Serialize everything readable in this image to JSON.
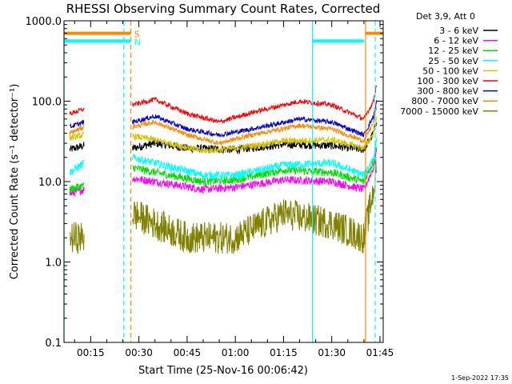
{
  "chart_data": {
    "type": "line",
    "title": "RHESSI Observing Summary Count Rates, Corrected",
    "xlabel": "Start Time (25-Nov-16 00:06:42)",
    "ylabel": "Corrected Count Rate (s⁻¹ detector⁻¹)",
    "y_scale": "log",
    "ylim": [
      0.1,
      1000.0
    ],
    "xlim_min": [
      6.7,
      106
    ],
    "x_ticks": [
      {
        "min": 15,
        "label": "00:15"
      },
      {
        "min": 30,
        "label": "00:30"
      },
      {
        "min": 45,
        "label": "00:45"
      },
      {
        "min": 60,
        "label": "01:00"
      },
      {
        "min": 75,
        "label": "01:15"
      },
      {
        "min": 90,
        "label": "01:30"
      },
      {
        "min": 105,
        "label": "01:45"
      }
    ],
    "y_ticks": [
      {
        "v": 0.1,
        "label": "0.1"
      },
      {
        "v": 1,
        "label": "1.0"
      },
      {
        "v": 10,
        "label": "10.0"
      },
      {
        "v": 100,
        "label": "100.0"
      },
      {
        "v": 1000,
        "label": "1000.0"
      }
    ],
    "legend": {
      "position": "right",
      "header": "Det 3,9, Att 0",
      "entries": [
        {
          "label": "3 - 6 keV",
          "color": "#000000"
        },
        {
          "label": "6 - 12 keV",
          "color": "#ff00ff"
        },
        {
          "label": "12 - 25 keV",
          "color": "#00dd00"
        },
        {
          "label": "25 - 50 keV",
          "color": "#00ffff"
        },
        {
          "label": "50 - 100 keV",
          "color": "#d4c400"
        },
        {
          "label": "100 - 300 keV",
          "color": "#ff0000"
        },
        {
          "label": "300 - 800 keV",
          "color": "#0000cc"
        },
        {
          "label": "800 - 7000 keV",
          "color": "#ff8800"
        },
        {
          "label": "7000 - 15000 keV",
          "color": "#808000"
        }
      ]
    },
    "segments": [
      [
        8.5,
        13.0
      ],
      [
        28.0,
        104.0
      ]
    ],
    "series": [
      {
        "name": "3 - 6 keV",
        "color": "#000000",
        "noise": 0.05,
        "points": [
          [
            8.5,
            25
          ],
          [
            13,
            28
          ],
          [
            28,
            26
          ],
          [
            35,
            30
          ],
          [
            45,
            26
          ],
          [
            60,
            25
          ],
          [
            75,
            29
          ],
          [
            90,
            28
          ],
          [
            100,
            25
          ],
          [
            103,
            40
          ],
          [
            104,
            60
          ]
        ]
      },
      {
        "name": "6 - 12 keV",
        "color": "#ff00ff",
        "noise": 0.05,
        "points": [
          [
            8.5,
            7
          ],
          [
            13,
            8
          ],
          [
            28,
            11
          ],
          [
            35,
            10
          ],
          [
            50,
            8
          ],
          [
            60,
            8.5
          ],
          [
            75,
            10.5
          ],
          [
            90,
            10
          ],
          [
            100,
            8
          ],
          [
            103,
            15
          ],
          [
            104,
            25
          ]
        ]
      },
      {
        "name": "12 - 25 keV",
        "color": "#00dd00",
        "noise": 0.05,
        "points": [
          [
            8.5,
            8
          ],
          [
            13,
            9
          ],
          [
            28,
            15
          ],
          [
            35,
            13
          ],
          [
            50,
            10
          ],
          [
            60,
            10.5
          ],
          [
            75,
            14
          ],
          [
            90,
            13
          ],
          [
            100,
            10
          ],
          [
            103,
            18
          ],
          [
            104,
            30
          ]
        ]
      },
      {
        "name": "25 - 50 keV",
        "color": "#00ffff",
        "noise": 0.05,
        "points": [
          [
            8.5,
            13
          ],
          [
            13,
            17
          ],
          [
            28,
            20
          ],
          [
            35,
            17
          ],
          [
            50,
            12
          ],
          [
            60,
            12
          ],
          [
            75,
            16
          ],
          [
            90,
            17
          ],
          [
            100,
            12
          ],
          [
            103,
            20
          ],
          [
            104,
            35
          ]
        ]
      },
      {
        "name": "50 - 100 keV",
        "color": "#d4c400",
        "noise": 0.04,
        "points": [
          [
            8.5,
            35
          ],
          [
            13,
            38
          ],
          [
            28,
            37
          ],
          [
            35,
            33
          ],
          [
            50,
            24
          ],
          [
            60,
            26
          ],
          [
            75,
            32
          ],
          [
            90,
            33
          ],
          [
            100,
            26
          ],
          [
            103,
            40
          ],
          [
            104,
            60
          ]
        ]
      },
      {
        "name": "100 - 300 keV",
        "color": "#ff0000",
        "noise": 0.03,
        "points": [
          [
            8.5,
            70
          ],
          [
            13,
            80
          ],
          [
            28,
            90
          ],
          [
            35,
            105
          ],
          [
            45,
            70
          ],
          [
            55,
            55
          ],
          [
            65,
            72
          ],
          [
            80,
            100
          ],
          [
            90,
            90
          ],
          [
            100,
            60
          ],
          [
            103,
            100
          ],
          [
            104,
            170
          ]
        ]
      },
      {
        "name": "300 - 800 keV",
        "color": "#0000cc",
        "noise": 0.03,
        "points": [
          [
            8.5,
            48
          ],
          [
            13,
            55
          ],
          [
            28,
            55
          ],
          [
            35,
            65
          ],
          [
            45,
            45
          ],
          [
            55,
            38
          ],
          [
            65,
            45
          ],
          [
            80,
            60
          ],
          [
            90,
            55
          ],
          [
            100,
            38
          ],
          [
            103,
            65
          ],
          [
            104,
            100
          ]
        ]
      },
      {
        "name": "800 - 7000 keV",
        "color": "#ff8800",
        "noise": 0.03,
        "points": [
          [
            8.5,
            40
          ],
          [
            13,
            48
          ],
          [
            28,
            48
          ],
          [
            35,
            55
          ],
          [
            45,
            38
          ],
          [
            55,
            30
          ],
          [
            65,
            38
          ],
          [
            80,
            50
          ],
          [
            90,
            45
          ],
          [
            100,
            32
          ],
          [
            103,
            55
          ],
          [
            104,
            85
          ]
        ]
      },
      {
        "name": "7000 - 15000 keV",
        "color": "#808000",
        "noise": 0.2,
        "points": [
          [
            8.5,
            2
          ],
          [
            13,
            2
          ],
          [
            28,
            4
          ],
          [
            35,
            3
          ],
          [
            45,
            2
          ],
          [
            60,
            2
          ],
          [
            75,
            4
          ],
          [
            90,
            3
          ],
          [
            100,
            2
          ],
          [
            103,
            8
          ],
          [
            104,
            15
          ]
        ]
      }
    ],
    "flag_bars": [
      {
        "label": "S",
        "color": "#ff8800",
        "y": 700,
        "spans": [
          [
            6.7,
            27.5
          ],
          [
            100.5,
            106
          ]
        ]
      },
      {
        "label": "N",
        "color": "#00ffff",
        "y": 560,
        "spans": [
          [
            6.7,
            27.5
          ],
          [
            84.0,
            100.0
          ]
        ]
      }
    ],
    "vlines": [
      {
        "min": 25.3,
        "color": "#00ffff",
        "style": "dash"
      },
      {
        "min": 27.5,
        "color": "#ff8800",
        "style": "dash"
      },
      {
        "min": 84.0,
        "color": "#00ffff",
        "style": "solid"
      },
      {
        "min": 100.5,
        "color": "#ff8800",
        "style": "solid"
      },
      {
        "min": 103.5,
        "color": "#00ffff",
        "style": "dash"
      },
      {
        "min": 6.7,
        "color": "#00ffff",
        "style": "solid"
      }
    ],
    "footer_stamp": "1-Sep-2022 17:35"
  }
}
